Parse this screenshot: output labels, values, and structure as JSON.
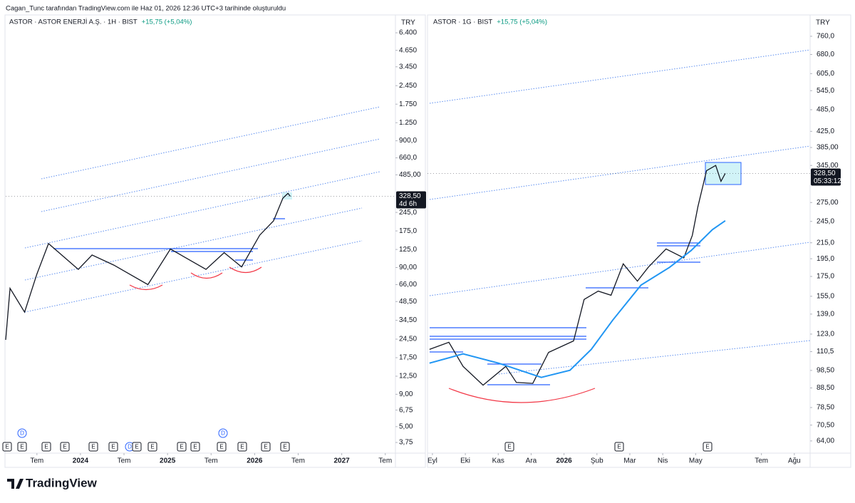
{
  "header": "Cagan_Tunc tarafından TradingView.com ile Haz 01, 2026 12:36 UTC+3 tarihinde oluşturuldu",
  "footer_logo": "TradingView",
  "chart_data": [
    {
      "type": "line",
      "title": "ASTOR · ASTOR ENERJİ A.Ş. · 1H · BIST",
      "change": "+15,75 (+5,04%)",
      "currency": "TRY",
      "log_scale": true,
      "last_price": {
        "value": 328.5,
        "label": "328,50"
      },
      "countdown": "4d 6h",
      "xlim": [
        1.7,
        55.4
      ],
      "xticks": [
        {
          "value": 6,
          "label": "Tem"
        },
        {
          "value": 12,
          "label": "2024"
        },
        {
          "value": 18,
          "label": "Tem"
        },
        {
          "value": 24,
          "label": "2025"
        },
        {
          "value": 30,
          "label": "Tem"
        },
        {
          "value": 36,
          "label": "2026"
        },
        {
          "value": 42,
          "label": "Tem"
        },
        {
          "value": 48,
          "label": "2027"
        },
        {
          "value": 54,
          "label": "Tem"
        }
      ],
      "ylim": [
        3.09,
        7100
      ],
      "yticks": [
        {
          "value": 6400,
          "label": "6.400"
        },
        {
          "value": 4650,
          "label": "4.650"
        },
        {
          "value": 3450,
          "label": "3.450"
        },
        {
          "value": 2450,
          "label": "2.450"
        },
        {
          "value": 1750,
          "label": "1.750"
        },
        {
          "value": 1250,
          "label": "1.250"
        },
        {
          "value": 900,
          "label": "900,0"
        },
        {
          "value": 660,
          "label": "660,0"
        },
        {
          "value": 485,
          "label": "485,00"
        },
        {
          "value": 245,
          "label": "245,0"
        },
        {
          "value": 175,
          "label": "175,0"
        },
        {
          "value": 125,
          "label": "125,0"
        },
        {
          "value": 90,
          "label": "90,00"
        },
        {
          "value": 66,
          "label": "66,00"
        },
        {
          "value": 48.5,
          "label": "48,50"
        },
        {
          "value": 34.5,
          "label": "34,50"
        },
        {
          "value": 24.5,
          "label": "24,50"
        },
        {
          "value": 17.5,
          "label": "17,50"
        },
        {
          "value": 12.5,
          "label": "12,50"
        },
        {
          "value": 9,
          "label": "9,00"
        },
        {
          "value": 6.75,
          "label": "6,75"
        },
        {
          "value": 5,
          "label": "5,00"
        },
        {
          "value": 3.75,
          "label": "3,75"
        }
      ],
      "events": [
        "D",
        "D",
        "E",
        "E",
        "E",
        "E",
        "E",
        "E",
        "D",
        "E",
        "E",
        "E",
        "E",
        "E",
        "E",
        "E",
        "E"
      ],
      "series": [
        {
          "color": "#131722",
          "x": [
            1.7,
            2.3,
            4.3,
            6,
            7.6,
            11.7,
            13.6,
            16.6,
            21.3,
            24.4,
            29.3,
            31.8,
            34.2,
            36.7,
            38.6,
            39.9,
            40.6,
            40.9
          ],
          "values": [
            24.2,
            61.7,
            40,
            80,
            139,
            87,
            113,
            94,
            66,
            126,
            87,
            118,
            91,
            162,
            210,
            318,
            346,
            328.5
          ]
        }
      ]
    },
    {
      "type": "line",
      "title": "ASTOR · 1G · BIST",
      "change": "+15,75 (+5,04%)",
      "currency": "TRY",
      "log_scale": true,
      "last_price": {
        "value": 328.5,
        "label": "328,50"
      },
      "countdown": "05:33:12",
      "xlim": [
        7.85,
        19.48
      ],
      "xticks": [
        {
          "value": 8,
          "label": "Eyl"
        },
        {
          "value": 9,
          "label": "Eki"
        },
        {
          "value": 10,
          "label": "Kas"
        },
        {
          "value": 11,
          "label": "Ara"
        },
        {
          "value": 12,
          "label": "2026"
        },
        {
          "value": 13,
          "label": "Şub"
        },
        {
          "value": 14,
          "label": "Mar"
        },
        {
          "value": 15,
          "label": "Nis"
        },
        {
          "value": 16,
          "label": "May"
        },
        {
          "value": 18,
          "label": "Tem"
        },
        {
          "value": 19,
          "label": "Ağu"
        }
      ],
      "ylim": [
        59.4,
        804
      ],
      "yticks": [
        {
          "value": 760,
          "label": "760,0"
        },
        {
          "value": 680,
          "label": "680,0"
        },
        {
          "value": 605,
          "label": "605,0"
        },
        {
          "value": 545,
          "label": "545,0"
        },
        {
          "value": 485,
          "label": "485,0"
        },
        {
          "value": 425,
          "label": "425,0"
        },
        {
          "value": 385,
          "label": "385,00"
        },
        {
          "value": 345,
          "label": "345,00"
        },
        {
          "value": 275,
          "label": "275,00"
        },
        {
          "value": 245,
          "label": "245,0"
        },
        {
          "value": 215,
          "label": "215,0"
        },
        {
          "value": 195,
          "label": "195,0"
        },
        {
          "value": 175,
          "label": "175,0"
        },
        {
          "value": 155,
          "label": "155,0"
        },
        {
          "value": 139,
          "label": "139,0"
        },
        {
          "value": 123,
          "label": "123,0"
        },
        {
          "value": 110.5,
          "label": "110,5"
        },
        {
          "value": 98.5,
          "label": "98,50"
        },
        {
          "value": 88.5,
          "label": "88,50"
        },
        {
          "value": 78.5,
          "label": "78,50"
        },
        {
          "value": 70.5,
          "label": "70,50"
        },
        {
          "value": 64,
          "label": "64,00"
        }
      ],
      "events": [
        "E",
        "E",
        "E"
      ],
      "series": [
        {
          "color": "#131722",
          "x": [
            7.91,
            8.5,
            8.93,
            9.54,
            10.23,
            10.55,
            11.05,
            11.53,
            12.29,
            12.61,
            13.04,
            13.43,
            13.8,
            14.23,
            14.56,
            15.1,
            15.64,
            15.9,
            16.07,
            16.33,
            16.61,
            16.77,
            16.9
          ],
          "values": [
            112,
            117,
            101,
            90,
            101,
            91.5,
            91,
            110,
            118,
            152,
            160,
            156,
            189,
            170,
            185,
            207,
            196,
            225,
            268,
            334,
            345,
            313,
            328.5
          ]
        },
        {
          "color": "#2196f3",
          "x": [
            7.91,
            8.93,
            10.01,
            11.31,
            12.18,
            12.83,
            13.48,
            14.34,
            15.21,
            15.86,
            16.51,
            16.9
          ],
          "values": [
            103,
            109,
            103,
            94.4,
            98.6,
            112,
            134,
            166,
            185,
            205,
            233,
            246
          ]
        }
      ]
    }
  ]
}
